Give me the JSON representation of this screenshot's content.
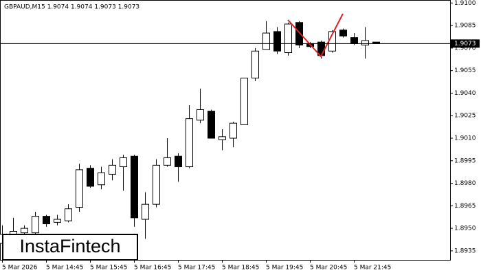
{
  "chart_data": {
    "type": "candlestick",
    "title": "GBPAUD,M15  1.9074 1.9074 1.9073 1.9073",
    "watermark": "InstaFintech",
    "categories": [
      "5 Mar 2026",
      null,
      null,
      null,
      "5 Mar 14:45",
      null,
      null,
      null,
      "5 Mar 15:45",
      null,
      null,
      null,
      "5 Mar 16:45",
      null,
      null,
      null,
      "5 Mar 17:45",
      null,
      null,
      null,
      "5 Mar 18:45",
      null,
      null,
      null,
      "5 Mar 19:45",
      null,
      null,
      null,
      "5 Mar 20:45",
      null,
      null,
      null,
      "5 Mar 21:45",
      null,
      null
    ],
    "open": [
      1.894,
      1.894,
      1.8947,
      1.8947,
      1.8958,
      1.8954,
      1.8955,
      1.8964,
      1.899,
      1.8979,
      1.8986,
      1.8991,
      1.8998,
      1.8956,
      1.8966,
      1.8992,
      1.8998,
      1.8991,
      1.9022,
      1.9028,
      1.9009,
      1.901,
      1.9019,
      1.905,
      1.9069,
      1.9081,
      1.9067,
      1.9087,
      1.9073,
      1.9074,
      1.9068,
      1.9082,
      1.9077,
      1.9072,
      1.9074
    ],
    "high": [
      1.8952,
      1.8957,
      1.8952,
      1.8961,
      1.8959,
      1.8959,
      1.8966,
      1.8993,
      1.8992,
      1.8991,
      1.8996,
      1.8999,
      1.8999,
      1.8974,
      1.8996,
      1.901,
      1.9,
      1.9032,
      1.9043,
      1.9029,
      1.9016,
      1.9021,
      1.905,
      1.907,
      1.9088,
      1.9084,
      1.9087,
      1.9088,
      1.9074,
      1.9075,
      1.9082,
      1.9083,
      1.908,
      1.9084,
      1.9074
    ],
    "low": [
      1.8935,
      1.8935,
      1.894,
      1.8944,
      1.8951,
      1.8952,
      1.8954,
      1.8961,
      1.8977,
      1.8976,
      1.8982,
      1.8975,
      1.8951,
      1.8943,
      1.8964,
      1.8991,
      1.8981,
      1.899,
      1.902,
      1.901,
      1.9002,
      1.9004,
      1.9019,
      1.9048,
      1.9069,
      1.9066,
      1.9065,
      1.907,
      1.907,
      1.9063,
      1.9067,
      1.9077,
      1.9072,
      1.9063,
      1.9073
    ],
    "close": [
      1.8946,
      1.8948,
      1.895,
      1.8958,
      1.8953,
      1.8956,
      1.8963,
      1.8989,
      1.8978,
      1.8987,
      1.8992,
      1.8997,
      1.8957,
      1.8966,
      1.8992,
      1.8997,
      1.8991,
      1.9023,
      1.9029,
      1.901,
      1.9011,
      1.902,
      1.905,
      1.9068,
      1.908,
      1.9068,
      1.9086,
      1.9072,
      1.9071,
      1.9065,
      1.9081,
      1.9078,
      1.9073,
      1.9075,
      1.9073
    ],
    "up_color": "#ffffff",
    "down_color": "#000000",
    "line_color": "#000000",
    "current_price": 1.9073,
    "ylim": [
      1.8929,
      1.9102
    ],
    "yticks": [
      {
        "value": 1.91,
        "label": "1.9100"
      },
      1.9085,
      {
        "value": 1.907,
        "label": "1.9070"
      },
      1.9055,
      {
        "value": 1.904,
        "label": "1.9040"
      },
      1.9025,
      {
        "value": 1.901,
        "label": "1.9010"
      },
      1.8995,
      {
        "value": 1.898,
        "label": "1.8980"
      },
      1.8965,
      {
        "value": 1.895,
        "label": "1.8950"
      },
      1.8935
    ],
    "grid": false
  }
}
